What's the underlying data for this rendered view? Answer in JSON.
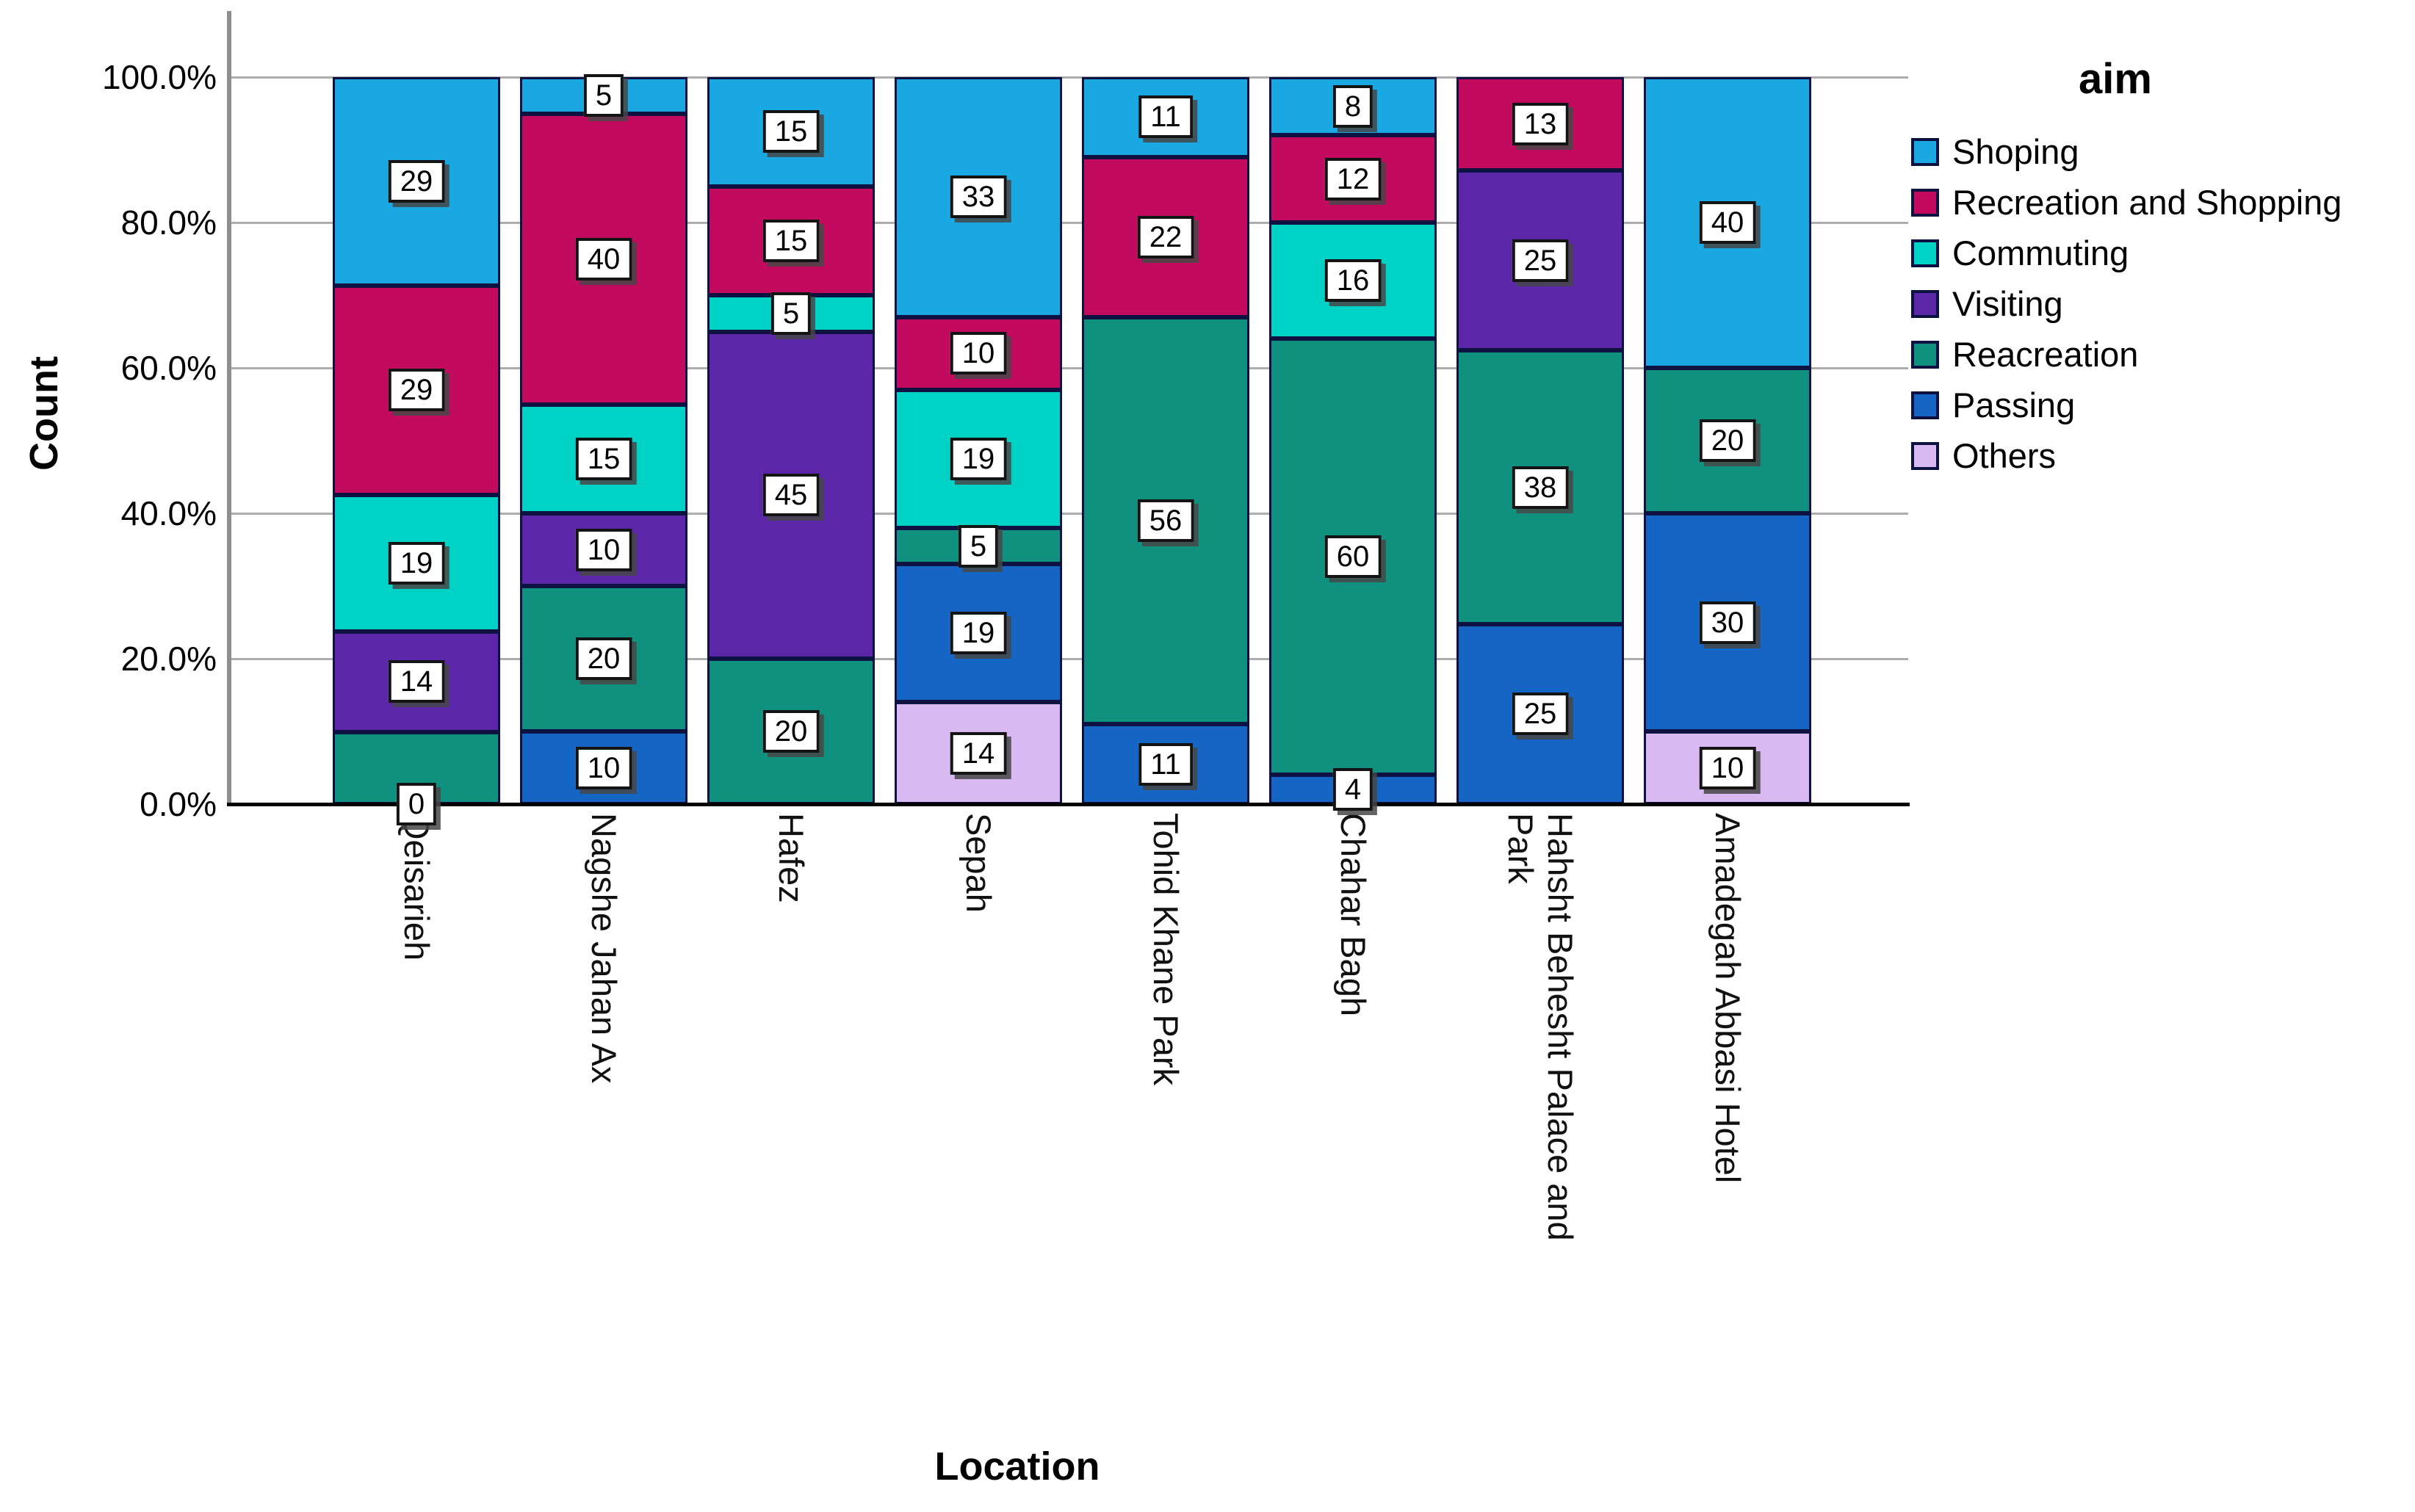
{
  "chart": {
    "y_axis_title": "Count",
    "x_axis_title": "Location",
    "legend_title": "aim"
  },
  "chart_data": {
    "type": "bar",
    "subtype": "stacked-percent",
    "title": "",
    "xlabel": "Location",
    "ylabel": "Count",
    "grid": true,
    "legend_position": "right",
    "y_axis": {
      "range_pct": [
        0,
        100
      ],
      "ticks": [
        "0.0%",
        "20.0%",
        "40.0%",
        "60.0%",
        "80.0%",
        "100.0%"
      ]
    },
    "legend": {
      "title": "aim",
      "items": [
        {
          "label": "Shoping",
          "color": "#19a8e2"
        },
        {
          "label": "Recreation and Shopping",
          "color": "#c20b5e"
        },
        {
          "label": "Commuting",
          "color": "#00d2c5"
        },
        {
          "label": "Visiting",
          "color": "#5b27a8"
        },
        {
          "label": "Reacreation",
          "color": "#10917f"
        },
        {
          "label": "Passing",
          "color": "#1566c4"
        },
        {
          "label": "Others",
          "color": "#d9b9f2"
        }
      ]
    },
    "categories": [
      "Qeisarieh",
      "Nagshe Jahan Ax",
      "Hafez",
      "Sepah",
      "Tohid Khane Park",
      "Chahar Bagh",
      "Hahsht Behesht Palace and Park",
      "Amadegah Abbasi Hotel"
    ],
    "tick_labels": [
      "Qeisarieh",
      "Nagshe Jahan Ax",
      "Hafez",
      "Sepah",
      "Tohid Khane Park",
      "Chahar Bagh",
      "Hahsht Behesht Palace and\nPark",
      "Amadegah Abbasi Hotel"
    ],
    "bars": [
      {
        "category": "Qeisarieh",
        "segments": [
          {
            "aim": "Shoping",
            "count": 29,
            "label": "29"
          },
          {
            "aim": "Recreation and Shopping",
            "count": 29,
            "label": "29"
          },
          {
            "aim": "Commuting",
            "count": 19,
            "label": "19"
          },
          {
            "aim": "Visiting",
            "count": 14,
            "label": "14"
          },
          {
            "aim": "Reacreation",
            "count": 10,
            "label": null
          },
          {
            "aim": "Passing",
            "count": 0,
            "label": "0"
          }
        ]
      },
      {
        "category": "Nagshe Jahan Ax",
        "segments": [
          {
            "aim": "Shoping",
            "count": 5,
            "label": "5"
          },
          {
            "aim": "Recreation and Shopping",
            "count": 40,
            "label": "40"
          },
          {
            "aim": "Commuting",
            "count": 15,
            "label": "15"
          },
          {
            "aim": "Visiting",
            "count": 10,
            "label": "10"
          },
          {
            "aim": "Reacreation",
            "count": 20,
            "label": "20"
          },
          {
            "aim": "Passing",
            "count": 10,
            "label": "10"
          }
        ]
      },
      {
        "category": "Hafez",
        "segments": [
          {
            "aim": "Shoping",
            "count": 15,
            "label": "15"
          },
          {
            "aim": "Recreation and Shopping",
            "count": 15,
            "label": "15"
          },
          {
            "aim": "Commuting",
            "count": 5,
            "label": "5"
          },
          {
            "aim": "Visiting",
            "count": 45,
            "label": "45"
          },
          {
            "aim": "Reacreation",
            "count": 20,
            "label": "20"
          }
        ]
      },
      {
        "category": "Sepah",
        "segments": [
          {
            "aim": "Shoping",
            "count": 33,
            "label": "33"
          },
          {
            "aim": "Recreation and Shopping",
            "count": 10,
            "label": "10"
          },
          {
            "aim": "Commuting",
            "count": 19,
            "label": "19"
          },
          {
            "aim": "Reacreation",
            "count": 5,
            "label": "5"
          },
          {
            "aim": "Passing",
            "count": 19,
            "label": "19"
          },
          {
            "aim": "Others",
            "count": 14,
            "label": "14"
          }
        ]
      },
      {
        "category": "Tohid Khane Park",
        "segments": [
          {
            "aim": "Shoping",
            "count": 11,
            "label": "11"
          },
          {
            "aim": "Recreation and Shopping",
            "count": 22,
            "label": "22"
          },
          {
            "aim": "Reacreation",
            "count": 56,
            "label": "56"
          },
          {
            "aim": "Passing",
            "count": 11,
            "label": "11"
          }
        ]
      },
      {
        "category": "Chahar Bagh",
        "segments": [
          {
            "aim": "Shoping",
            "count": 8,
            "label": "8"
          },
          {
            "aim": "Recreation and Shopping",
            "count": 12,
            "label": "12"
          },
          {
            "aim": "Commuting",
            "count": 16,
            "label": "16"
          },
          {
            "aim": "Reacreation",
            "count": 60,
            "label": "60"
          },
          {
            "aim": "Passing",
            "count": 4,
            "label": "4"
          }
        ]
      },
      {
        "category": "Hahsht Behesht Palace and Park",
        "segments": [
          {
            "aim": "Recreation and Shopping",
            "count": 13,
            "label": "13"
          },
          {
            "aim": "Visiting",
            "count": 25,
            "label": "25"
          },
          {
            "aim": "Reacreation",
            "count": 38,
            "label": "38"
          },
          {
            "aim": "Passing",
            "count": 25,
            "label": "25"
          }
        ]
      },
      {
        "category": "Amadegah Abbasi Hotel",
        "segments": [
          {
            "aim": "Shoping",
            "count": 40,
            "label": "40"
          },
          {
            "aim": "Reacreation",
            "count": 20,
            "label": "20"
          },
          {
            "aim": "Passing",
            "count": 30,
            "label": "30"
          },
          {
            "aim": "Others",
            "count": 10,
            "label": "10"
          }
        ]
      }
    ]
  }
}
